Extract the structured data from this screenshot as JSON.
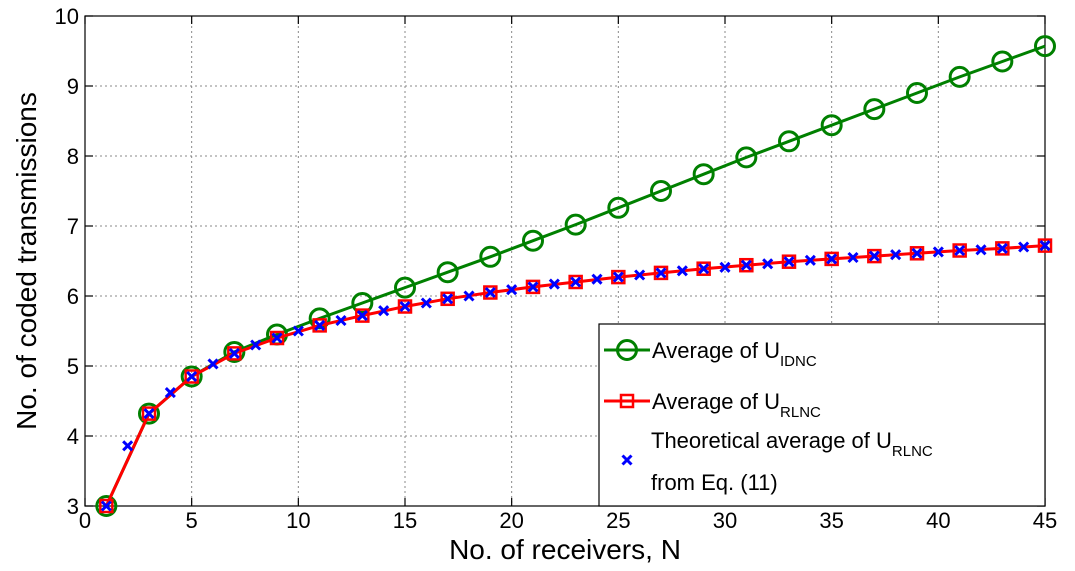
{
  "chart_data": {
    "type": "line",
    "xlabel": "No. of receivers, N",
    "ylabel": "No. of coded transmissions",
    "xlim": [
      0,
      45
    ],
    "ylim": [
      3,
      10
    ],
    "xticks": [
      0,
      5,
      10,
      15,
      20,
      25,
      30,
      35,
      40,
      45
    ],
    "yticks": [
      3,
      4,
      5,
      6,
      7,
      8,
      9,
      10
    ],
    "grid": true,
    "legend_position": "bottom-right",
    "series": [
      {
        "name": "Average of U",
        "subscript": "IDNC",
        "color": "#008000",
        "marker": "circle",
        "x": [
          1,
          3,
          5,
          7,
          9,
          11,
          13,
          15,
          17,
          19,
          21,
          23,
          25,
          27,
          29,
          31,
          33,
          35,
          37,
          39,
          41,
          43,
          45
        ],
        "y": [
          3.0,
          4.32,
          4.85,
          5.2,
          5.45,
          5.68,
          5.9,
          6.12,
          6.34,
          6.56,
          6.79,
          7.02,
          7.26,
          7.5,
          7.74,
          7.98,
          8.21,
          8.44,
          8.67,
          8.9,
          9.13,
          9.35,
          9.57
        ]
      },
      {
        "name": "Average of U",
        "subscript": "RLNC",
        "color": "#ff0000",
        "marker": "square",
        "x": [
          1,
          3,
          5,
          7,
          9,
          11,
          13,
          15,
          17,
          19,
          21,
          23,
          25,
          27,
          29,
          31,
          33,
          35,
          37,
          39,
          41,
          43,
          45
        ],
        "y": [
          3.0,
          4.32,
          4.85,
          5.18,
          5.4,
          5.58,
          5.72,
          5.85,
          5.96,
          6.05,
          6.13,
          6.2,
          6.27,
          6.33,
          6.39,
          6.44,
          6.49,
          6.53,
          6.57,
          6.61,
          6.65,
          6.68,
          6.72
        ]
      },
      {
        "name": "Theoretical average of U",
        "subscript": "RLNC",
        "name_line2": "from Eq. (11)",
        "color": "#0000ff",
        "marker": "x",
        "x": [
          1,
          2,
          3,
          4,
          5,
          6,
          7,
          8,
          9,
          10,
          11,
          12,
          13,
          14,
          15,
          16,
          17,
          18,
          19,
          20,
          21,
          22,
          23,
          24,
          25,
          26,
          27,
          28,
          29,
          30,
          31,
          32,
          33,
          34,
          35,
          36,
          37,
          38,
          39,
          40,
          41,
          42,
          43,
          44,
          45
        ],
        "y": [
          3.0,
          3.86,
          4.32,
          4.62,
          4.85,
          5.03,
          5.18,
          5.3,
          5.4,
          5.5,
          5.58,
          5.65,
          5.72,
          5.79,
          5.85,
          5.9,
          5.96,
          6.0,
          6.05,
          6.09,
          6.13,
          6.17,
          6.2,
          6.24,
          6.27,
          6.3,
          6.33,
          6.36,
          6.39,
          6.41,
          6.44,
          6.46,
          6.49,
          6.51,
          6.53,
          6.55,
          6.57,
          6.59,
          6.61,
          6.63,
          6.65,
          6.66,
          6.68,
          6.7,
          6.72
        ]
      }
    ]
  }
}
